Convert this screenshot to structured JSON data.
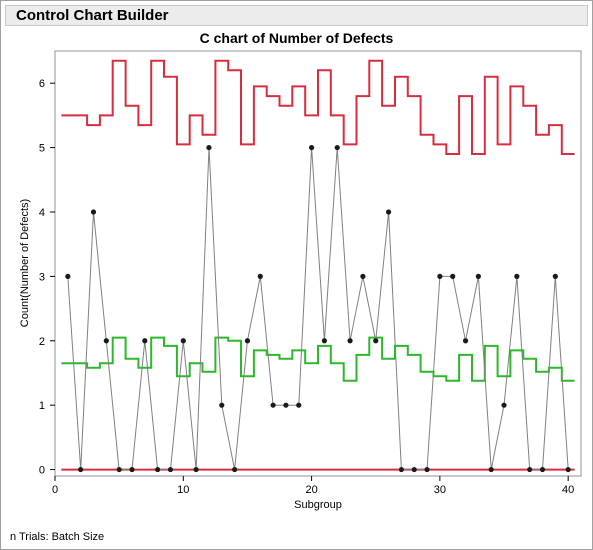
{
  "window": {
    "title": "Control Chart Builder"
  },
  "footer": {
    "note": "n Trials: Batch Size"
  },
  "colors": {
    "ucl": "#d62e3e",
    "center": "#2bb82b",
    "lcl": "#d62e3e",
    "data_line": "#808080",
    "points": "#1a1a1a"
  },
  "chart_data": {
    "type": "line",
    "title": "C chart of Number of Defects",
    "xlabel": "Subgroup",
    "ylabel": "Count(Number of Defects)",
    "xlim": [
      0,
      41
    ],
    "ylim": [
      -0.1,
      6.5
    ],
    "xticks": [
      0,
      10,
      20,
      30,
      40
    ],
    "yticks": [
      0,
      1,
      2,
      3,
      4,
      5,
      6
    ],
    "x": [
      1,
      2,
      3,
      4,
      5,
      6,
      7,
      8,
      9,
      10,
      11,
      12,
      13,
      14,
      15,
      16,
      17,
      18,
      19,
      20,
      21,
      22,
      23,
      24,
      25,
      26,
      27,
      28,
      29,
      30,
      31,
      32,
      33,
      34,
      35,
      36,
      37,
      38,
      39,
      40
    ],
    "values": [
      3,
      0,
      4,
      2,
      0,
      0,
      2,
      0,
      0,
      2,
      0,
      5,
      1,
      0,
      2,
      3,
      1,
      1,
      1,
      5,
      2,
      5,
      2,
      3,
      2,
      4,
      0,
      0,
      0,
      3,
      3,
      2,
      3,
      0,
      1,
      3,
      0,
      0,
      3,
      0
    ],
    "limits": {
      "ucl": [
        5.5,
        5.5,
        5.35,
        5.5,
        6.35,
        5.65,
        5.35,
        6.35,
        6.1,
        5.05,
        5.5,
        5.2,
        6.35,
        6.2,
        5.05,
        5.95,
        5.8,
        5.65,
        5.95,
        5.5,
        6.2,
        5.5,
        5.05,
        5.8,
        6.35,
        5.65,
        6.1,
        5.8,
        5.2,
        5.05,
        4.9,
        5.8,
        4.9,
        6.1,
        5.05,
        5.95,
        5.65,
        5.2,
        5.35,
        4.9
      ],
      "center": [
        1.65,
        1.65,
        1.58,
        1.65,
        2.05,
        1.72,
        1.58,
        2.05,
        1.92,
        1.45,
        1.65,
        1.52,
        2.05,
        2.0,
        1.45,
        1.85,
        1.78,
        1.72,
        1.85,
        1.65,
        1.92,
        1.65,
        1.38,
        1.78,
        2.05,
        1.72,
        1.92,
        1.78,
        1.52,
        1.45,
        1.38,
        1.78,
        1.38,
        1.92,
        1.45,
        1.85,
        1.72,
        1.52,
        1.58,
        1.38
      ],
      "lcl": [
        0,
        0,
        0,
        0,
        0,
        0,
        0,
        0,
        0,
        0,
        0,
        0,
        0,
        0,
        0,
        0,
        0,
        0,
        0,
        0,
        0,
        0,
        0,
        0,
        0,
        0,
        0,
        0,
        0,
        0,
        0,
        0,
        0,
        0,
        0,
        0,
        0,
        0,
        0,
        0
      ]
    }
  }
}
